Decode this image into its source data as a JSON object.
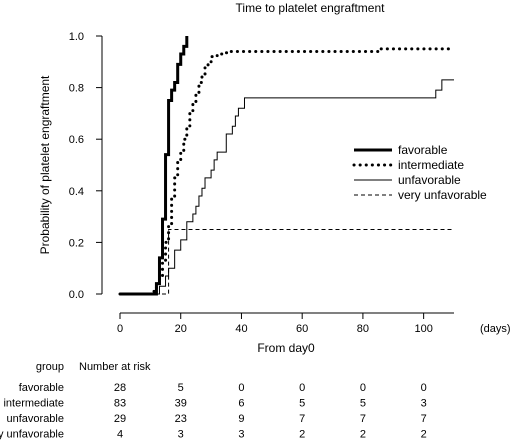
{
  "chart_data": {
    "type": "line",
    "title": "Time to platelet engraftment",
    "xlabel": "From day0",
    "x_unit": "(days)",
    "ylabel": "Probability of platelet engraftment",
    "xlim": [
      0,
      110
    ],
    "ylim": [
      0,
      1
    ],
    "xticks": [
      "0",
      "20",
      "40",
      "60",
      "80",
      "100"
    ],
    "yticks": [
      "0.0",
      "0.2",
      "0.4",
      "0.6",
      "0.8",
      "1.0"
    ],
    "legend_position": "right",
    "grid": false,
    "series": [
      {
        "name": "favorable",
        "style": "solid-thick",
        "x": [
          0,
          12,
          13,
          14,
          15,
          16,
          17,
          18,
          19,
          20,
          21,
          22
        ],
        "y": [
          0,
          0.04,
          0.14,
          0.29,
          0.54,
          0.75,
          0.79,
          0.82,
          0.89,
          0.93,
          0.96,
          1.0
        ]
      },
      {
        "name": "intermediate",
        "style": "dotted",
        "x": [
          0,
          11,
          12,
          13,
          14,
          15,
          16,
          17,
          18,
          19,
          20,
          21,
          22,
          23,
          24,
          25,
          26,
          27,
          28,
          29,
          30,
          32,
          34,
          36,
          84,
          85,
          110
        ],
        "y": [
          0,
          0.01,
          0.04,
          0.07,
          0.12,
          0.2,
          0.27,
          0.37,
          0.45,
          0.51,
          0.55,
          0.6,
          0.65,
          0.7,
          0.74,
          0.78,
          0.82,
          0.85,
          0.88,
          0.9,
          0.92,
          0.93,
          0.935,
          0.94,
          0.94,
          0.95,
          0.95
        ]
      },
      {
        "name": "unfavorable",
        "style": "solid-thin",
        "x": [
          0,
          13,
          15,
          16,
          18,
          20,
          22,
          24,
          25,
          26,
          27,
          28,
          30,
          31,
          32,
          33,
          35,
          37,
          38,
          39,
          40,
          41,
          103,
          104,
          106,
          110
        ],
        "y": [
          0,
          0.03,
          0.07,
          0.1,
          0.17,
          0.21,
          0.28,
          0.31,
          0.34,
          0.38,
          0.41,
          0.45,
          0.48,
          0.52,
          0.55,
          0.55,
          0.62,
          0.65,
          0.69,
          0.72,
          0.72,
          0.76,
          0.76,
          0.79,
          0.83,
          0.83
        ]
      },
      {
        "name": "very unfavorable",
        "style": "dashed",
        "x": [
          0,
          16,
          20,
          110
        ],
        "y": [
          0,
          0.25,
          0.25,
          0.25
        ]
      }
    ],
    "risk_table": {
      "col_header": "group",
      "value_header": "Number at risk",
      "rows": [
        {
          "group": "favorable",
          "values": [
            "28",
            "5",
            "0",
            "0",
            "0",
            "0"
          ]
        },
        {
          "group": "intermediate",
          "values": [
            "83",
            "39",
            "6",
            "5",
            "5",
            "3"
          ]
        },
        {
          "group": "unfavorable",
          "values": [
            "29",
            "23",
            "9",
            "7",
            "7",
            "7"
          ]
        },
        {
          "group": "very unfavorable",
          "values": [
            "4",
            "3",
            "3",
            "2",
            "2",
            "2"
          ]
        }
      ]
    }
  }
}
